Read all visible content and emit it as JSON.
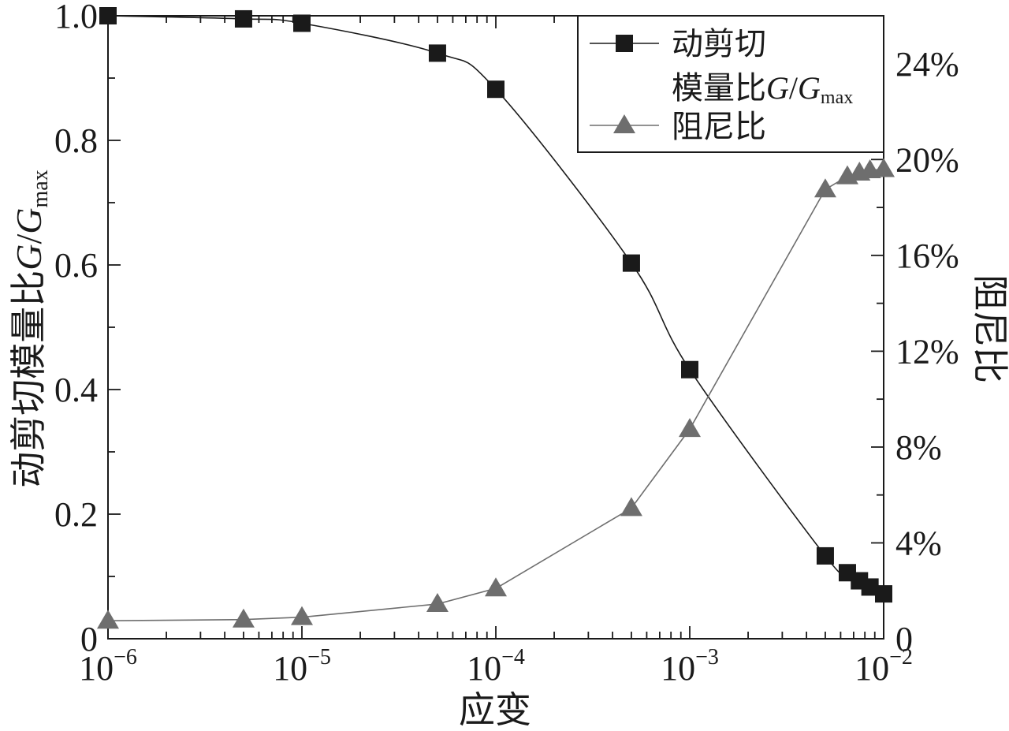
{
  "chart_data": {
    "type": "line",
    "x_scale": "log",
    "xlabel": "应变",
    "xlim": [
      "1e-6",
      "1e-2"
    ],
    "x_ticks": [
      {
        "base": "10",
        "exp": "−6"
      },
      {
        "base": "10",
        "exp": "−5"
      },
      {
        "base": "10",
        "exp": "−4"
      },
      {
        "base": "10",
        "exp": "−3"
      },
      {
        "base": "10",
        "exp": "−2"
      }
    ],
    "y_left": {
      "label_main": "动剪切模量比",
      "label_var": "G",
      "label_slash": "/",
      "label_var2": "G",
      "label_sub": "max",
      "lim": [
        0,
        1.0
      ],
      "ticks": [
        "0",
        "0.2",
        "0.4",
        "0.6",
        "0.8",
        "1.0"
      ]
    },
    "y_right": {
      "label": "阻尼比",
      "lim": [
        0,
        0.26
      ],
      "ticks": [
        "0",
        "4%",
        "8%",
        "12%",
        "16%",
        "20%",
        "24%"
      ]
    },
    "series": [
      {
        "name": "动剪切模量比G/Gmax",
        "legend_line1": "动剪切",
        "legend_line2_main": "模量比",
        "legend_line2_var": "G",
        "legend_line2_slash": "/",
        "legend_line2_var2": "G",
        "legend_line2_sub": "max",
        "axis": "left",
        "marker": "square",
        "color": "#1a1a1a",
        "x": [
          1e-06,
          5e-06,
          1e-05,
          5e-05,
          0.0001,
          0.0005,
          0.001,
          0.005,
          0.0065,
          0.0075,
          0.0085,
          0.01
        ],
        "y": [
          1.0,
          0.995,
          0.988,
          0.94,
          0.882,
          0.603,
          0.432,
          0.133,
          0.106,
          0.093,
          0.083,
          0.072
        ]
      },
      {
        "name": "阻尼比",
        "legend_label": "阻尼比",
        "axis": "right",
        "marker": "triangle",
        "color": "#6e6e6e",
        "x": [
          1e-06,
          5e-06,
          1e-05,
          5e-05,
          0.0001,
          0.0005,
          0.001,
          0.005,
          0.0065,
          0.0075,
          0.0085,
          0.01
        ],
        "y": [
          0.0075,
          0.008,
          0.009,
          0.0145,
          0.021,
          0.0545,
          0.0875,
          0.1875,
          0.193,
          0.1945,
          0.1955,
          0.196
        ]
      }
    ],
    "legend_position": "top-right",
    "grid": false
  }
}
